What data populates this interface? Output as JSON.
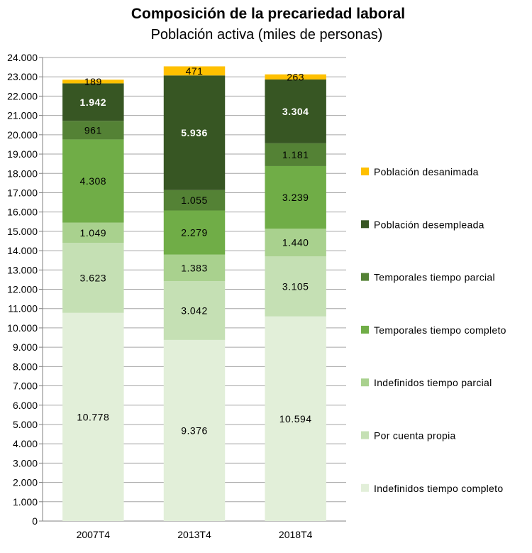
{
  "chart_data": {
    "type": "bar",
    "stacked": true,
    "title": "Composición de la precariedad laboral",
    "subtitle": "Población activa (miles de personas)",
    "categories": [
      "2007T4",
      "2013T4",
      "2018T4"
    ],
    "ylim": [
      0,
      24000
    ],
    "ytick_step": 1000,
    "y_tick_labels": [
      "0",
      "1.000",
      "2.000",
      "3.000",
      "4.000",
      "5.000",
      "6.000",
      "7.000",
      "8.000",
      "9.000",
      "10.000",
      "11.000",
      "12.000",
      "13.000",
      "14.000",
      "15.000",
      "16.000",
      "17.000",
      "18.000",
      "19.000",
      "20.000",
      "21.000",
      "22.000",
      "23.000",
      "24.000"
    ],
    "grid": true,
    "legend_position": "right",
    "series": [
      {
        "name": "Indefinidos tiempo completo",
        "color": "#e2efd9",
        "label_color": "#000000",
        "values": [
          10778,
          9376,
          10594
        ],
        "labels": [
          "10.778",
          "9.376",
          "10.594"
        ]
      },
      {
        "name": "Por cuenta propia",
        "color": "#c5e0b4",
        "label_color": "#000000",
        "values": [
          3623,
          3042,
          3105
        ],
        "labels": [
          "3.623",
          "3.042",
          "3.105"
        ]
      },
      {
        "name": "Indefinidos tiempo parcial",
        "color": "#a9d18e",
        "label_color": "#000000",
        "values": [
          1049,
          1383,
          1440
        ],
        "labels": [
          "1.049",
          "1.383",
          "1.440"
        ]
      },
      {
        "name": "Temporales tiempo completo",
        "color": "#70ad47",
        "label_color": "#000000",
        "values": [
          4308,
          2279,
          3239
        ],
        "labels": [
          "4.308",
          "2.279",
          "3.239"
        ]
      },
      {
        "name": "Temporales tiempo parcial",
        "color": "#548235",
        "label_color": "#000000",
        "values": [
          961,
          1055,
          1181
        ],
        "labels": [
          "961",
          "1.055",
          "1.181"
        ]
      },
      {
        "name": "Población desempleada",
        "color": "#375623",
        "label_color": "#ffffff",
        "label_bold": true,
        "values": [
          1942,
          5936,
          3304
        ],
        "labels": [
          "1.942",
          "5.936",
          "3.304"
        ]
      },
      {
        "name": "Población desanimada",
        "color": "#ffc000",
        "label_color": "#000000",
        "values": [
          189,
          471,
          263
        ],
        "labels": [
          "189",
          "471",
          "263"
        ]
      }
    ]
  }
}
